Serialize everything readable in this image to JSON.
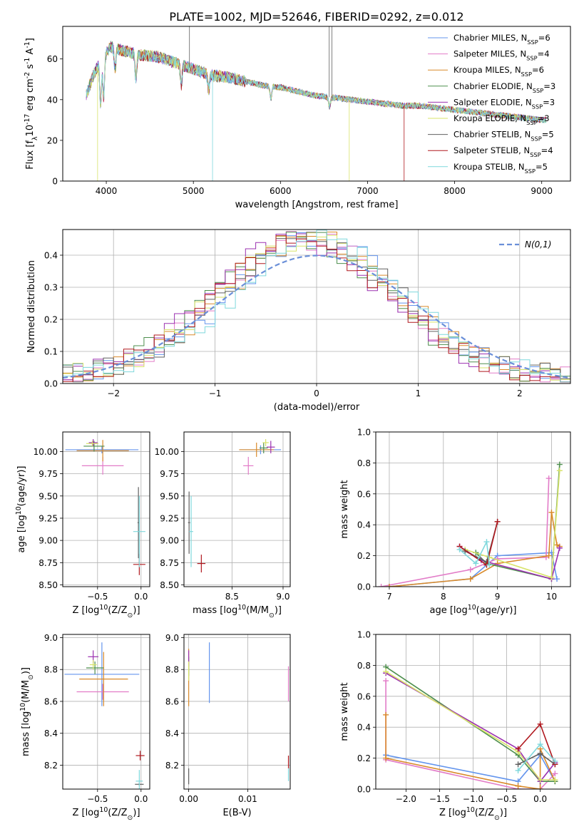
{
  "title": "PLATE=1002, MJD=52646, FIBERID=0292, z=0.012",
  "colors": [
    "#6495ED",
    "#E27CC8",
    "#D98A2A",
    "#4E8F4E",
    "#9B30B0",
    "#D8E36A",
    "#606060",
    "#B0181E",
    "#7FD8DC"
  ],
  "models": [
    "Chabrier MILES, N$SSP=6",
    "Salpeter MILES, N$SSP=4",
    "Kroupa MILES, N$SSP=6",
    "Chabrier ELODIE, N$SSP=3",
    "Salpeter ELODIE, N$SSP=3",
    "Kroupa ELODIE, N$SSP=3",
    "Chabrier STELIB, N$SSP=5",
    "Salpeter STELIB, N$SSP=4",
    "Kroupa STELIB, N$SSP=5"
  ],
  "chart_data": [
    {
      "id": "spectrum",
      "type": "line",
      "xlabel": "wavelength [Angstrom, rest frame]",
      "ylabel": "Flux [f$λ10$-17 erg cm$-2 s$-1 A$-1]",
      "xlim": [
        3500,
        9330
      ],
      "ylim": [
        0,
        76
      ],
      "xticks": [
        4000,
        5000,
        6000,
        7000,
        8000,
        9000
      ],
      "yticks": [
        0,
        20,
        40,
        60
      ],
      "legend": "top-right",
      "continuum": [
        [
          3770,
          42
        ],
        [
          3850,
          52
        ],
        [
          3950,
          60
        ],
        [
          4050,
          66
        ],
        [
          4200,
          64
        ],
        [
          4400,
          62
        ],
        [
          4600,
          61
        ],
        [
          4800,
          58
        ],
        [
          5000,
          55
        ],
        [
          5200,
          52
        ],
        [
          5400,
          51
        ],
        [
          5600,
          49
        ],
        [
          5800,
          47
        ],
        [
          6000,
          46
        ],
        [
          6200,
          44
        ],
        [
          6400,
          42
        ],
        [
          6600,
          41
        ],
        [
          6800,
          40
        ],
        [
          7000,
          39
        ],
        [
          7200,
          38
        ],
        [
          7400,
          37
        ],
        [
          7600,
          37
        ],
        [
          7800,
          36
        ],
        [
          8000,
          35
        ],
        [
          8200,
          34
        ],
        [
          8400,
          33
        ],
        [
          8600,
          32
        ],
        [
          8800,
          31
        ],
        [
          9000,
          30
        ]
      ]
    },
    {
      "id": "residuals",
      "type": "line",
      "xlabel": "(data-model)/error",
      "ylabel": "Normed distribution",
      "xlim": [
        -2.5,
        2.5
      ],
      "ylim": [
        0,
        0.48
      ],
      "xticks": [
        -2,
        -1,
        0,
        1,
        2
      ],
      "yticks": [
        0.0,
        0.1,
        0.2,
        0.3,
        0.4
      ],
      "grid": true,
      "legend": "top-right",
      "legend_label": "N(0,1)",
      "normal": {
        "mean": 0,
        "sigma": 1
      }
    },
    {
      "id": "age_vs_Z",
      "type": "scatter",
      "xlabel": "Z [log$10(Z/Z$⊙)]",
      "ylabel": "age  [log$10(age/yr)]",
      "xlim": [
        -0.9,
        0.1
      ],
      "ylim": [
        8.48,
        10.22
      ],
      "xticks": [
        -0.5,
        0.0
      ],
      "yticks": [
        8.5,
        8.75,
        9.0,
        9.25,
        9.5,
        9.75,
        10.0
      ],
      "grid": true,
      "points": [
        {
          "x": -0.45,
          "y": 10.02,
          "xerr": 0.42,
          "yerr": 0.04
        },
        {
          "x": -0.44,
          "y": 9.84,
          "xerr": 0.24,
          "yerr": 0.1
        },
        {
          "x": -0.44,
          "y": 10.01,
          "xerr": 0.3,
          "yerr": 0.12
        },
        {
          "x": -0.54,
          "y": 10.06,
          "xerr": 0.12,
          "yerr": 0.06
        },
        {
          "x": -0.55,
          "y": 10.1,
          "xerr": 0.05,
          "yerr": 0.04
        },
        {
          "x": -0.56,
          "y": 10.09,
          "xerr": 0.07,
          "yerr": 0.03
        },
        {
          "x": -0.03,
          "y": 9.2,
          "xerr": 0.01,
          "yerr": 0.4
        },
        {
          "x": -0.02,
          "y": 8.73,
          "xerr": 0.07,
          "yerr": 0.12
        },
        {
          "x": -0.02,
          "y": 9.1,
          "xerr": 0.07,
          "yerr": 0.4
        }
      ]
    },
    {
      "id": "age_vs_mass",
      "type": "scatter",
      "xlabel": "mass [log$10(M/M$⊙)]",
      "ylabel": "",
      "xlim": [
        8.03,
        9.07
      ],
      "ylim": [
        8.48,
        10.22
      ],
      "xticks": [
        8.5,
        9.0
      ],
      "yticks": [
        8.5,
        8.75,
        9.0,
        9.25,
        9.5,
        9.75,
        10.0
      ],
      "grid": true,
      "points": [
        {
          "x": 8.78,
          "y": 10.02,
          "xerr": 0.2,
          "yerr": 0.05
        },
        {
          "x": 8.66,
          "y": 9.84,
          "xerr": 0.05,
          "yerr": 0.1
        },
        {
          "x": 8.74,
          "y": 10.02,
          "xerr": 0.17,
          "yerr": 0.08
        },
        {
          "x": 8.81,
          "y": 10.04,
          "xerr": 0.04,
          "yerr": 0.06
        },
        {
          "x": 8.88,
          "y": 10.05,
          "xerr": 0.04,
          "yerr": 0.07
        },
        {
          "x": 8.83,
          "y": 10.1,
          "xerr": 0.03,
          "yerr": 0.04
        },
        {
          "x": 8.08,
          "y": 9.2,
          "xerr": 0.01,
          "yerr": 0.35
        },
        {
          "x": 8.2,
          "y": 8.74,
          "xerr": 0.04,
          "yerr": 0.1
        },
        {
          "x": 8.1,
          "y": 9.1,
          "xerr": 0.02,
          "yerr": 0.4
        }
      ]
    },
    {
      "id": "weight_vs_age",
      "type": "line",
      "xlabel": "age  [log$10(age/yr)]",
      "ylabel": "mass weight",
      "xlim": [
        6.75,
        10.35
      ],
      "ylim": [
        0.0,
        1.0
      ],
      "xticks": [
        7,
        8,
        9,
        10
      ],
      "yticks": [
        0.0,
        0.2,
        0.4,
        0.6,
        0.8,
        1.0
      ],
      "grid": true,
      "series": [
        {
          "x": [
            7.0,
            8.5,
            9.0,
            10.0,
            10.1
          ],
          "y": [
            0.0,
            0.05,
            0.2,
            0.22,
            0.05
          ]
        },
        {
          "x": [
            6.85,
            8.5,
            9.0,
            9.9,
            9.95
          ],
          "y": [
            0.0,
            0.11,
            0.18,
            0.19,
            0.7
          ]
        },
        {
          "x": [
            7.0,
            8.5,
            9.0,
            9.95,
            10.0,
            10.1,
            10.15
          ],
          "y": [
            0.0,
            0.05,
            0.15,
            0.2,
            0.48,
            0.27,
            0.26
          ]
        },
        {
          "x": [
            8.6,
            8.8,
            10.0,
            10.15
          ],
          "y": [
            0.22,
            0.15,
            0.05,
            0.79
          ]
        },
        {
          "x": [
            8.3,
            8.7,
            10.0,
            10.15
          ],
          "y": [
            0.26,
            0.17,
            0.05,
            0.25
          ]
        },
        {
          "x": [
            8.4,
            8.85,
            10.0,
            10.15
          ],
          "y": [
            0.24,
            0.19,
            0.06,
            0.75
          ]
        },
        {
          "x": [
            8.4,
            8.8,
            9.0
          ],
          "y": [
            0.23,
            0.16,
            0.42
          ]
        },
        {
          "x": [
            8.3,
            8.8,
            9.0
          ],
          "y": [
            0.26,
            0.14,
            0.42
          ]
        },
        {
          "x": [
            8.3,
            8.6,
            8.8,
            8.85
          ],
          "y": [
            0.24,
            0.15,
            0.29,
            0.14
          ]
        }
      ]
    },
    {
      "id": "mass_vs_Z",
      "type": "scatter",
      "xlabel": "Z [log$10(Z/Z$⊙)]",
      "ylabel": "mass [log$10(M/M$⊙)]",
      "xlim": [
        -0.9,
        0.1
      ],
      "ylim": [
        8.05,
        9.02
      ],
      "xticks": [
        -0.5,
        0.0
      ],
      "yticks": [
        8.2,
        8.4,
        8.6,
        8.8,
        9.0
      ],
      "grid": true,
      "points": [
        {
          "x": -0.45,
          "y": 8.77,
          "xerr": 0.43,
          "yerr": 0.2
        },
        {
          "x": -0.44,
          "y": 8.66,
          "xerr": 0.3,
          "yerr": 0.05
        },
        {
          "x": -0.43,
          "y": 8.74,
          "xerr": 0.28,
          "yerr": 0.17
        },
        {
          "x": -0.53,
          "y": 8.81,
          "xerr": 0.1,
          "yerr": 0.04
        },
        {
          "x": -0.55,
          "y": 8.88,
          "xerr": 0.06,
          "yerr": 0.04
        },
        {
          "x": -0.55,
          "y": 8.83,
          "xerr": 0.04,
          "yerr": 0.03
        },
        {
          "x": -0.02,
          "y": 8.08,
          "xerr": 0.05,
          "yerr": 0.01
        },
        {
          "x": -0.01,
          "y": 8.26,
          "xerr": 0.05,
          "yerr": 0.03
        },
        {
          "x": -0.02,
          "y": 8.1,
          "xerr": 0.04,
          "yerr": 0.07
        }
      ]
    },
    {
      "id": "mass_vs_EBV",
      "type": "scatter",
      "xlabel": "E(B-V)",
      "ylabel": "",
      "xlim": [
        -0.0008,
        0.0172
      ],
      "ylim": [
        8.05,
        9.02
      ],
      "xticks": [
        0.0,
        0.01
      ],
      "yticks": [
        8.2,
        8.4,
        8.6,
        8.8,
        9.0
      ],
      "grid": true,
      "points": [
        {
          "x": 0.0035,
          "y": 8.78,
          "xerr": 0.0,
          "yerr": 0.19
        },
        {
          "x": 0.0169,
          "y": 8.71,
          "xerr": 0.0,
          "yerr": 0.11
        },
        {
          "x": 0.0,
          "y": 8.75,
          "xerr": 0.0,
          "yerr": 0.18
        },
        {
          "x": 0.0,
          "y": 8.82,
          "xerr": 0.0,
          "yerr": 0.06
        },
        {
          "x": 0.0,
          "y": 8.87,
          "xerr": 0.0,
          "yerr": 0.05
        },
        {
          "x": 0.0,
          "y": 8.79,
          "xerr": 0.0,
          "yerr": 0.06
        },
        {
          "x": 0.0,
          "y": 8.13,
          "xerr": 0.0,
          "yerr": 0.05
        },
        {
          "x": 0.0169,
          "y": 8.22,
          "xerr": 0.0,
          "yerr": 0.04
        },
        {
          "x": 0.0169,
          "y": 8.14,
          "xerr": 0.0,
          "yerr": 0.04
        }
      ]
    },
    {
      "id": "weight_vs_Z",
      "type": "line",
      "xlabel": "Z [log$10(Z/Z$⊙)]",
      "ylabel": "mass weight",
      "xlim": [
        -2.45,
        0.45
      ],
      "ylim": [
        0.0,
        1.0
      ],
      "xticks": [
        -2.0,
        -1.5,
        -1.0,
        -0.5,
        0.0
      ],
      "yticks": [
        0.0,
        0.2,
        0.4,
        0.6,
        0.8,
        1.0
      ],
      "grid": true,
      "series": [
        {
          "x": [
            -2.3,
            -0.33,
            0.0,
            0.22
          ],
          "y": [
            0.22,
            0.05,
            0.22,
            0.05
          ]
        },
        {
          "x": [
            -2.3,
            -2.3,
            -0.33,
            0.0,
            0.22
          ],
          "y": [
            0.7,
            0.19,
            0.0,
            0.0,
            0.1
          ]
        },
        {
          "x": [
            -2.3,
            -2.3,
            -0.33,
            0.0,
            0.0,
            0.22
          ],
          "y": [
            0.48,
            0.2,
            0.02,
            0.0,
            0.26,
            0.05
          ]
        },
        {
          "x": [
            -2.3,
            -0.33,
            0.0,
            0.22
          ],
          "y": [
            0.79,
            0.22,
            0.05,
            0.05
          ]
        },
        {
          "x": [
            -2.3,
            -0.33,
            0.0,
            0.22
          ],
          "y": [
            0.75,
            0.26,
            0.05,
            0.17
          ]
        },
        {
          "x": [
            -2.3,
            -0.33,
            0.0,
            0.22
          ],
          "y": [
            0.76,
            0.24,
            0.06,
            0.06
          ]
        },
        {
          "x": [
            -0.33,
            0.0,
            0.22
          ],
          "y": [
            0.16,
            0.23,
            0.16
          ]
        },
        {
          "x": [
            -0.33,
            0.0,
            0.22
          ],
          "y": [
            0.26,
            0.42,
            0.16
          ]
        },
        {
          "x": [
            -0.33,
            0.0,
            0.22
          ],
          "y": [
            0.12,
            0.29,
            0.18
          ]
        }
      ]
    }
  ]
}
